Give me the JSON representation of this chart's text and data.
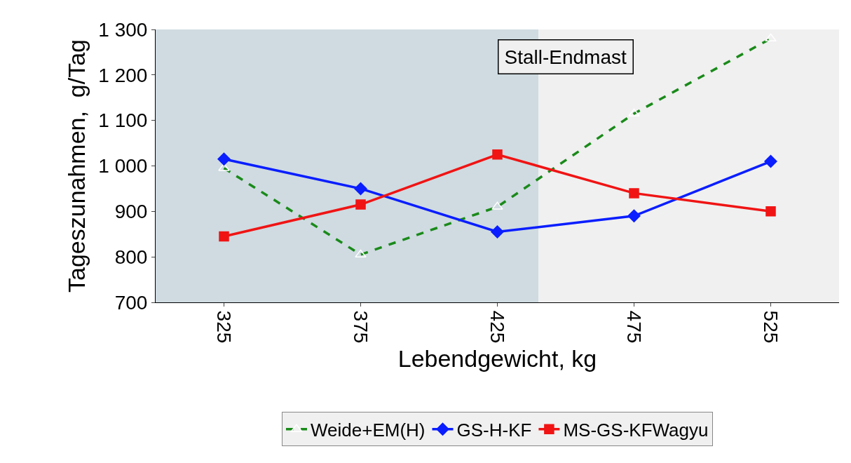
{
  "chart_data": {
    "type": "line",
    "xlabel": "Lebendgewicht, kg",
    "ylabel": "Tageszunahmen,  g/Tag",
    "x": [
      325,
      375,
      425,
      475,
      525
    ],
    "series": [
      {
        "name": "Weide+EM(H)",
        "color": "#1a8a1a",
        "values": [
          995,
          805,
          910,
          1115,
          1280
        ],
        "marker": "triangle",
        "line_style": "dashed"
      },
      {
        "name": "GS-H-KF",
        "color": "#0a1eff",
        "values": [
          1015,
          950,
          855,
          890,
          1010
        ],
        "marker": "diamond",
        "line_style": "solid"
      },
      {
        "name": "MS-GS-KFWagyu",
        "color": "#f01414",
        "values": [
          845,
          915,
          1025,
          940,
          900
        ],
        "marker": "square",
        "line_style": "solid"
      }
    ],
    "xlim": [
      300,
      550
    ],
    "xticks": [
      325,
      375,
      425,
      475,
      525
    ],
    "ylim": [
      700,
      1300
    ],
    "yticks": [
      700,
      800,
      900,
      {
        "value": 1000,
        "label": "1 000"
      },
      {
        "value": 1100,
        "label": "1 100"
      },
      {
        "value": 1200,
        "label": "1 200"
      },
      {
        "value": 1300,
        "label": "1 300"
      }
    ],
    "bands": [
      {
        "axis": "x",
        "from": 300,
        "to": 440,
        "color": "#cfdbe1"
      }
    ],
    "annotations": [
      "Stall-Endmast"
    ],
    "grid": false,
    "legend": "bottom"
  }
}
